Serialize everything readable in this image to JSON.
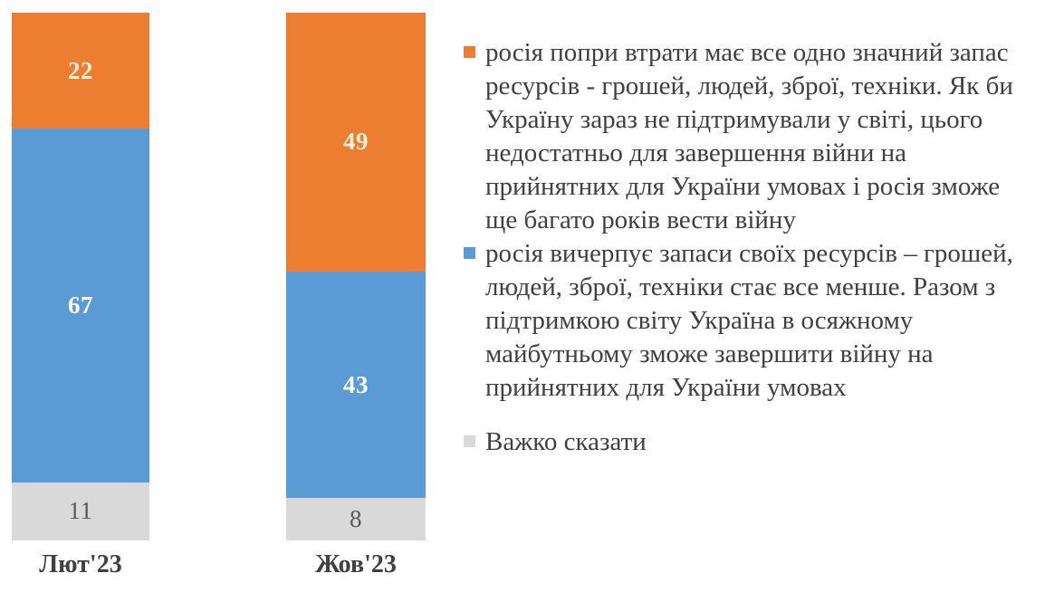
{
  "chart_data": {
    "type": "bar",
    "stacked": true,
    "orientation": "vertical",
    "title": "",
    "xlabel": "",
    "ylabel": "",
    "ylim": [
      0,
      100
    ],
    "grid": false,
    "legend_position": "right",
    "background": "#FFFFFF",
    "axis_label_color": "#404040",
    "legend_text_color": "#404040",
    "categories": [
      "Лют'23",
      "Жов'23"
    ],
    "series": [
      {
        "name": "росія попри втрати має все одно значний запас ресурсів - грошей, людей, зброї, техніки. Як би Україну зараз не підтримували у світі, цього недостатньо для завершення війни на прийнятних для України умовах і росія зможе ще багато років вести війну",
        "values": [
          22,
          49
        ],
        "color": "#ED7D31",
        "label_color": "#FAF1DE"
      },
      {
        "name": "росія вичерпує запаси своїх ресурсів – грошей, людей, зброї, техніки стає все менше. Разом з підтримкою світу Україна в осяжному майбутньому зможе завершити війну на прийнятних для України умовах",
        "values": [
          67,
          43
        ],
        "color": "#5B9BD5",
        "label_color": "#FFFFFF"
      },
      {
        "name": "Важко сказати",
        "values": [
          11,
          8
        ],
        "color": "#D9D9D9",
        "label_color": "#595959"
      }
    ]
  }
}
